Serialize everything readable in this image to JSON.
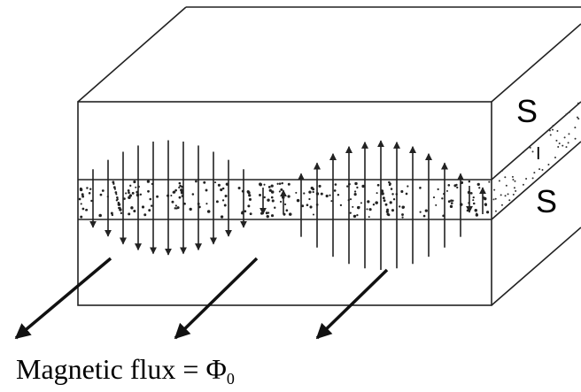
{
  "labels": {
    "top": "S",
    "middle": "I",
    "bottom": "S"
  },
  "caption": {
    "text": "Magnetic flux = Φ",
    "subscript": "0"
  }
}
